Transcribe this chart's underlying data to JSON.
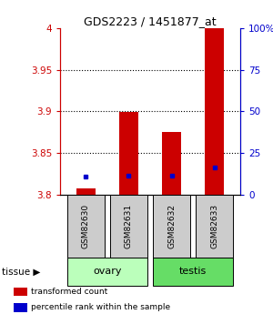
{
  "title": "GDS2223 / 1451877_at",
  "samples": [
    "GSM82630",
    "GSM82631",
    "GSM82632",
    "GSM82633"
  ],
  "red_bar_values": [
    3.808,
    3.899,
    3.875,
    4.0
  ],
  "blue_marker_values": [
    3.822,
    3.823,
    3.823,
    3.833
  ],
  "red_bar_bottom": 3.8,
  "ylim_left": [
    3.8,
    4.0
  ],
  "ylim_right": [
    0,
    100
  ],
  "yticks_left": [
    3.8,
    3.85,
    3.9,
    3.95,
    4.0
  ],
  "ytick_labels_left": [
    "3.8",
    "3.85",
    "3.9",
    "3.95",
    "4"
  ],
  "yticks_right": [
    0,
    25,
    50,
    75,
    100
  ],
  "ytick_labels_right": [
    "0",
    "25",
    "50",
    "75",
    "100%"
  ],
  "tissue_groups": [
    {
      "label": "ovary",
      "samples": [
        0,
        1
      ],
      "color": "#bbffbb"
    },
    {
      "label": "testis",
      "samples": [
        2,
        3
      ],
      "color": "#66dd66"
    }
  ],
  "bar_color": "#cc0000",
  "marker_color": "#0000cc",
  "bar_width": 0.45,
  "label_box_color": "#cccccc",
  "tissue_label": "tissue",
  "legend_items": [
    {
      "label": "transformed count",
      "color": "#cc0000"
    },
    {
      "label": "percentile rank within the sample",
      "color": "#0000cc"
    }
  ]
}
